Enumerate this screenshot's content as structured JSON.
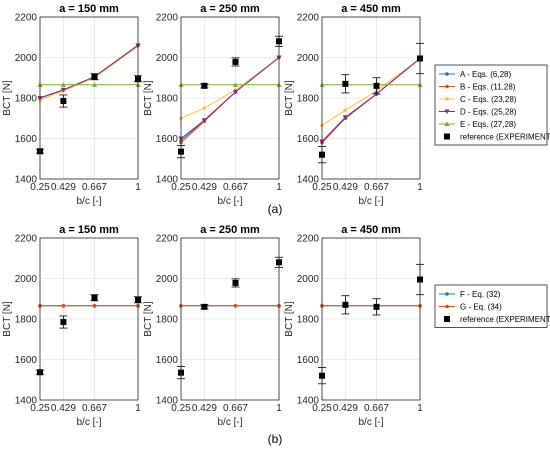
{
  "figure": {
    "colors": {
      "A": "#1f77b4",
      "B": "#d95319",
      "C": "#f0c640",
      "D": "#7e2f8e",
      "E": "#77ac30",
      "F": "#1f77b4",
      "G": "#d95319",
      "reference": "#000000"
    },
    "parts": [
      {
        "label": "(a)",
        "legend": [
          "A - Eqs. (6,28)",
          "B - Eqs. (11,28)",
          "C - Eqs. (23,28)",
          "D - Eqs. (25,28)",
          "E - Eqs. (27,28)",
          "reference (EXPERIMENT)"
        ],
        "legend_keys": [
          "A",
          "B",
          "C",
          "D",
          "E",
          "reference"
        ]
      },
      {
        "label": "(b)",
        "legend": [
          "F - Eq. (32)",
          "G - Eq. (34)",
          "reference (EXPERIMENT)"
        ],
        "legend_keys": [
          "F",
          "G",
          "reference"
        ]
      }
    ]
  },
  "chart_data": [
    {
      "type": "line",
      "part": "a",
      "title": "a = 150 mm",
      "xlabel": "b/c [-]",
      "ylabel": "BCT [N]",
      "xticks": [
        "0.25",
        "0.429",
        "0.667",
        "1"
      ],
      "yticks": [
        "1400",
        "1600",
        "1800",
        "2000",
        "2200"
      ],
      "xlim": [
        0.25,
        1
      ],
      "ylim": [
        1400,
        2200
      ],
      "grid": true,
      "legend": "right",
      "x": [
        0.25,
        0.429,
        0.667,
        1
      ],
      "series": [
        {
          "name": "A - Eqs. (6,28)",
          "key": "A",
          "marker": "circle",
          "values": [
            1800,
            1840,
            1905,
            2060
          ]
        },
        {
          "name": "B - Eqs. (11,28)",
          "key": "B",
          "marker": "circle",
          "values": [
            1800,
            1840,
            1905,
            2060
          ]
        },
        {
          "name": "C - Eqs. (23,28)",
          "key": "C",
          "marker": "circle",
          "values": [
            1790,
            1835,
            1900,
            2055
          ]
        },
        {
          "name": "D - Eqs. (25,28)",
          "key": "D",
          "marker": "triangle-down",
          "values": [
            1800,
            1840,
            1905,
            2060
          ]
        },
        {
          "name": "E - Eqs. (27,28)",
          "key": "E",
          "marker": "triangle-up",
          "values": [
            1865,
            1865,
            1865,
            1865
          ]
        }
      ],
      "reference": {
        "name": "reference (EXPERIMENT)",
        "x": [
          0.25,
          0.429,
          0.667,
          1
        ],
        "values": [
          1537,
          1785,
          1905,
          1895
        ],
        "err": [
          10,
          30,
          15,
          15
        ]
      }
    },
    {
      "type": "line",
      "part": "a",
      "title": "a = 250 mm",
      "xlabel": "b/c [-]",
      "ylabel": "BCT [N]",
      "xticks": [
        "0.25",
        "0.429",
        "0.667",
        "1"
      ],
      "yticks": [
        "1400",
        "1600",
        "1800",
        "2000",
        "2200"
      ],
      "xlim": [
        0.25,
        1
      ],
      "ylim": [
        1400,
        2200
      ],
      "grid": true,
      "x": [
        0.25,
        0.429,
        0.667,
        1
      ],
      "series": [
        {
          "name": "A - Eqs. (6,28)",
          "key": "A",
          "marker": "circle",
          "values": [
            1590,
            1690,
            1830,
            2000
          ]
        },
        {
          "name": "B - Eqs. (11,28)",
          "key": "B",
          "marker": "circle",
          "values": [
            1580,
            1685,
            1830,
            2000
          ]
        },
        {
          "name": "C - Eqs. (23,28)",
          "key": "C",
          "marker": "circle",
          "values": [
            1700,
            1750,
            1840,
            2000
          ]
        },
        {
          "name": "D - Eqs. (25,28)",
          "key": "D",
          "marker": "triangle-down",
          "values": [
            1600,
            1690,
            1830,
            2000
          ]
        },
        {
          "name": "E - Eqs. (27,28)",
          "key": "E",
          "marker": "triangle-up",
          "values": [
            1865,
            1865,
            1865,
            1865
          ]
        }
      ],
      "reference": {
        "name": "reference (EXPERIMENT)",
        "x": [
          0.25,
          0.429,
          0.667,
          1
        ],
        "values": [
          1535,
          1860,
          1978,
          2080
        ],
        "err": [
          30,
          10,
          20,
          25
        ]
      }
    },
    {
      "type": "line",
      "part": "a",
      "title": "a = 450 mm",
      "xlabel": "b/c [-]",
      "ylabel": "BCT [N]",
      "xticks": [
        "0.25",
        "0.429",
        "0.667",
        "1"
      ],
      "yticks": [
        "1400",
        "1600",
        "1800",
        "2000",
        "2200"
      ],
      "xlim": [
        0.25,
        1
      ],
      "ylim": [
        1400,
        2200
      ],
      "grid": true,
      "x": [
        0.25,
        0.429,
        0.667,
        1
      ],
      "series": [
        {
          "name": "A - Eqs. (6,28)",
          "key": "A",
          "marker": "circle",
          "values": [
            1580,
            1700,
            1820,
            1995
          ]
        },
        {
          "name": "B - Eqs. (11,28)",
          "key": "B",
          "marker": "circle",
          "values": [
            1580,
            1700,
            1820,
            1995
          ]
        },
        {
          "name": "C - Eqs. (23,28)",
          "key": "C",
          "marker": "circle",
          "values": [
            1665,
            1740,
            1835,
            1995
          ]
        },
        {
          "name": "D - Eqs. (25,28)",
          "key": "D",
          "marker": "triangle-down",
          "values": [
            1585,
            1705,
            1820,
            1995
          ]
        },
        {
          "name": "E - Eqs. (27,28)",
          "key": "E",
          "marker": "triangle-up",
          "values": [
            1865,
            1865,
            1865,
            1865
          ]
        }
      ],
      "reference": {
        "name": "reference (EXPERIMENT)",
        "x": [
          0.25,
          0.429,
          0.667,
          1
        ],
        "values": [
          1520,
          1870,
          1860,
          1995
        ],
        "err": [
          40,
          45,
          40,
          75
        ]
      }
    },
    {
      "type": "line",
      "part": "b",
      "title": "a = 150 mm",
      "xlabel": "b/c [-]",
      "ylabel": "BCT [N]",
      "xticks": [
        "0.25",
        "0.429",
        "0.667",
        "1"
      ],
      "yticks": [
        "1400",
        "1600",
        "1800",
        "2000",
        "2200"
      ],
      "xlim": [
        0.25,
        1
      ],
      "ylim": [
        1400,
        2200
      ],
      "grid": true,
      "legend": "right",
      "x": [
        0.25,
        0.429,
        0.667,
        1
      ],
      "series": [
        {
          "name": "F - Eq. (32)",
          "key": "F",
          "marker": "circle",
          "values": [
            1865,
            1865,
            1865,
            1865
          ]
        },
        {
          "name": "G - Eq. (34)",
          "key": "G",
          "marker": "circle",
          "values": [
            1865,
            1865,
            1865,
            1865
          ]
        }
      ],
      "reference": {
        "name": "reference (EXPERIMENT)",
        "x": [
          0.25,
          0.429,
          0.667,
          1
        ],
        "values": [
          1537,
          1785,
          1905,
          1895
        ],
        "err": [
          10,
          30,
          15,
          15
        ]
      }
    },
    {
      "type": "line",
      "part": "b",
      "title": "a = 250 mm",
      "xlabel": "b/c [-]",
      "ylabel": "BCT [N]",
      "xticks": [
        "0.25",
        "0.429",
        "0.667",
        "1"
      ],
      "yticks": [
        "1400",
        "1600",
        "1800",
        "2000",
        "2200"
      ],
      "xlim": [
        0.25,
        1
      ],
      "ylim": [
        1400,
        2200
      ],
      "grid": true,
      "x": [
        0.25,
        0.429,
        0.667,
        1
      ],
      "series": [
        {
          "name": "F - Eq. (32)",
          "key": "F",
          "marker": "circle",
          "values": [
            1865,
            1865,
            1865,
            1865
          ]
        },
        {
          "name": "G - Eq. (34)",
          "key": "G",
          "marker": "circle",
          "values": [
            1865,
            1865,
            1865,
            1865
          ]
        }
      ],
      "reference": {
        "name": "reference (EXPERIMENT)",
        "x": [
          0.25,
          0.429,
          0.667,
          1
        ],
        "values": [
          1535,
          1860,
          1978,
          2080
        ],
        "err": [
          30,
          10,
          20,
          25
        ]
      }
    },
    {
      "type": "line",
      "part": "b",
      "title": "a = 450 mm",
      "xlabel": "b/c [-]",
      "ylabel": "BCT [N]",
      "xticks": [
        "0.25",
        "0.429",
        "0.667",
        "1"
      ],
      "yticks": [
        "1400",
        "1600",
        "1800",
        "2000",
        "2200"
      ],
      "xlim": [
        0.25,
        1
      ],
      "ylim": [
        1400,
        2200
      ],
      "grid": true,
      "x": [
        0.25,
        0.429,
        0.667,
        1
      ],
      "series": [
        {
          "name": "F - Eq. (32)",
          "key": "F",
          "marker": "circle",
          "values": [
            1865,
            1865,
            1865,
            1865
          ]
        },
        {
          "name": "G - Eq. (34)",
          "key": "G",
          "marker": "circle",
          "values": [
            1865,
            1865,
            1865,
            1865
          ]
        }
      ],
      "reference": {
        "name": "reference (EXPERIMENT)",
        "x": [
          0.25,
          0.429,
          0.667,
          1
        ],
        "values": [
          1520,
          1870,
          1860,
          1995
        ],
        "err": [
          40,
          45,
          40,
          75
        ]
      }
    }
  ]
}
